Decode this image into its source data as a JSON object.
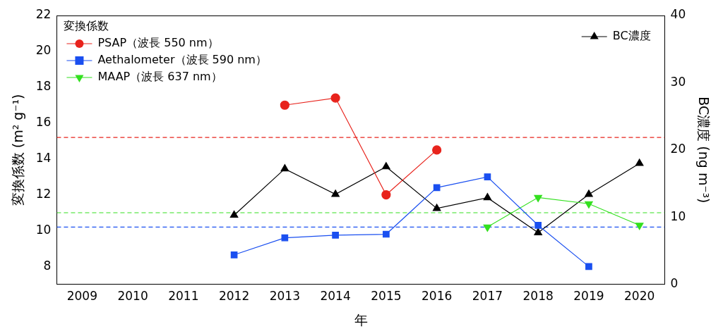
{
  "chart_data": {
    "type": "line",
    "x_label": "年",
    "y_label": "変換係数 (m² g⁻¹)",
    "y2_label": "BC濃度 (ng m⁻³)",
    "legend_title": "変換係数",
    "legend": "upper left",
    "grid": false,
    "categories": [
      "2009",
      "2010",
      "2011",
      "2012",
      "2013",
      "2014",
      "2015",
      "2016",
      "2017",
      "2018",
      "2019",
      "2020"
    ],
    "ylim": [
      7,
      22
    ],
    "yticks": [
      8,
      10,
      12,
      14,
      16,
      18,
      20,
      22
    ],
    "y2lim": [
      0,
      40
    ],
    "y2ticks": [
      0,
      10,
      20,
      30,
      40
    ],
    "series": [
      {
        "name": "PSAP（波長 550 nm）",
        "color": "#e8231c",
        "marker": "circle",
        "axis": "y",
        "values": [
          null,
          null,
          null,
          null,
          17.0,
          17.4,
          12.0,
          14.5,
          null,
          null,
          null,
          null
        ]
      },
      {
        "name": "Aethalometer（波長 590 nm）",
        "color": "#1a4ff0",
        "marker": "square",
        "axis": "y",
        "values": [
          null,
          null,
          null,
          8.65,
          9.6,
          9.75,
          9.8,
          12.4,
          13.0,
          10.3,
          8.0,
          null
        ]
      },
      {
        "name": "MAAP（波長 637 nm）",
        "color": "#33e01f",
        "marker": "triangle_down",
        "axis": "y",
        "values": [
          null,
          null,
          null,
          null,
          null,
          null,
          null,
          null,
          10.2,
          11.85,
          11.5,
          10.3
        ]
      },
      {
        "name": "BC濃度",
        "color": "#000000",
        "marker": "triangle",
        "axis": "y2",
        "values": [
          null,
          null,
          null,
          10.3,
          17.2,
          13.4,
          17.5,
          11.3,
          12.9,
          7.7,
          13.4,
          18.0
        ]
      }
    ],
    "reference_lines": [
      {
        "value": 15.2,
        "color": "#e8231c",
        "line_style": "dashed"
      },
      {
        "value": 11.0,
        "color": "#33e01f",
        "line_style": "dashed"
      },
      {
        "value": 10.2,
        "color": "#1a4ff0",
        "line_style": "dashed"
      }
    ]
  }
}
